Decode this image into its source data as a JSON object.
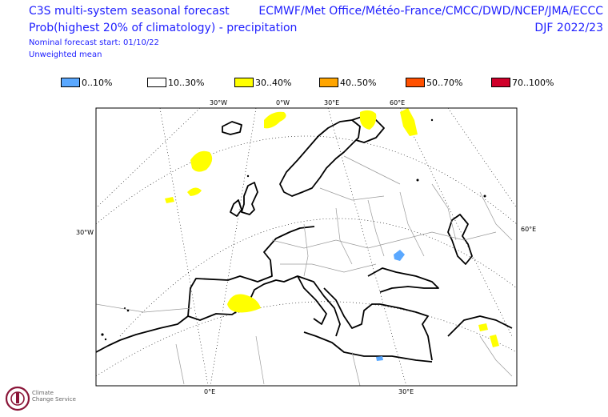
{
  "header": {
    "title": "C3S multi-system seasonal forecast",
    "subtitle": "Prob(highest 20% of climatology) - precipitation",
    "forecast_start": "Nominal forecast start: 01/10/22",
    "mean_type": "Unweighted mean",
    "agencies": "ECMWF/Met Office/Météo-France/CMCC/DWD/NCEP/JMA/ECCC",
    "season": "DJF 2022/23"
  },
  "legend": [
    {
      "label": "0..10%",
      "color": "#5aa8ff"
    },
    {
      "label": "10..30%",
      "color": "#ffffff"
    },
    {
      "label": "30..40%",
      "color": "#ffff00"
    },
    {
      "label": "40..50%",
      "color": "#ffa500"
    },
    {
      "label": "50..70%",
      "color": "#ff5000"
    },
    {
      "label": "70..100%",
      "color": "#d0002a"
    }
  ],
  "map": {
    "top_lon_labels": [
      "30°W",
      "0°W",
      "30°E",
      "60°E"
    ],
    "left_lat_label": "30°W",
    "right_lat_label": "60°E",
    "bottom_lon_labels": [
      "0°E",
      "30°E"
    ],
    "anomaly_regions": [
      {
        "name": "Iberia / Spain",
        "category": "30..40%"
      },
      {
        "name": "North Atlantic",
        "category": "30..40%"
      },
      {
        "name": "Scandinavia / Kola",
        "category": "30..40%"
      },
      {
        "name": "Arctic Russia",
        "category": "30..40%"
      },
      {
        "name": "Svalbard area",
        "category": "30..40%"
      },
      {
        "name": "Arabian coast",
        "category": "30..40%"
      },
      {
        "name": "Azov sea area",
        "category": "0..10%"
      },
      {
        "name": "Eastern Mediterranean",
        "category": "0..10%"
      }
    ]
  },
  "logo": {
    "line1": "Climate",
    "line2": "Change Service"
  }
}
